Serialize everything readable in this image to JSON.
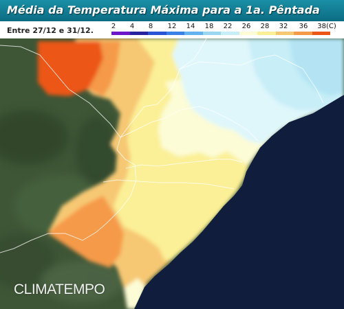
{
  "title": "Média da Temperatura Máxima para a 1a. Pêntada",
  "period": "Entre 27/12 e 31/12.",
  "legend": {
    "labels": [
      "2",
      "4",
      "8",
      "12",
      "14",
      "18",
      "22",
      "26",
      "28",
      "32",
      "36",
      "38(C)"
    ],
    "colors": [
      "#6d16c9",
      "#27239e",
      "#2a53d6",
      "#3a80e6",
      "#62b3ef",
      "#9ad6f0",
      "#c8eef7",
      "#fcfcd6",
      "#fbf097",
      "#f7c873",
      "#f59a48",
      "#ec5618"
    ]
  },
  "watermark": "CLIMATEMPO",
  "colors": {
    "ocean": "#101d3c",
    "land": "#3d5434",
    "title_bar": "#0f7d93"
  }
}
